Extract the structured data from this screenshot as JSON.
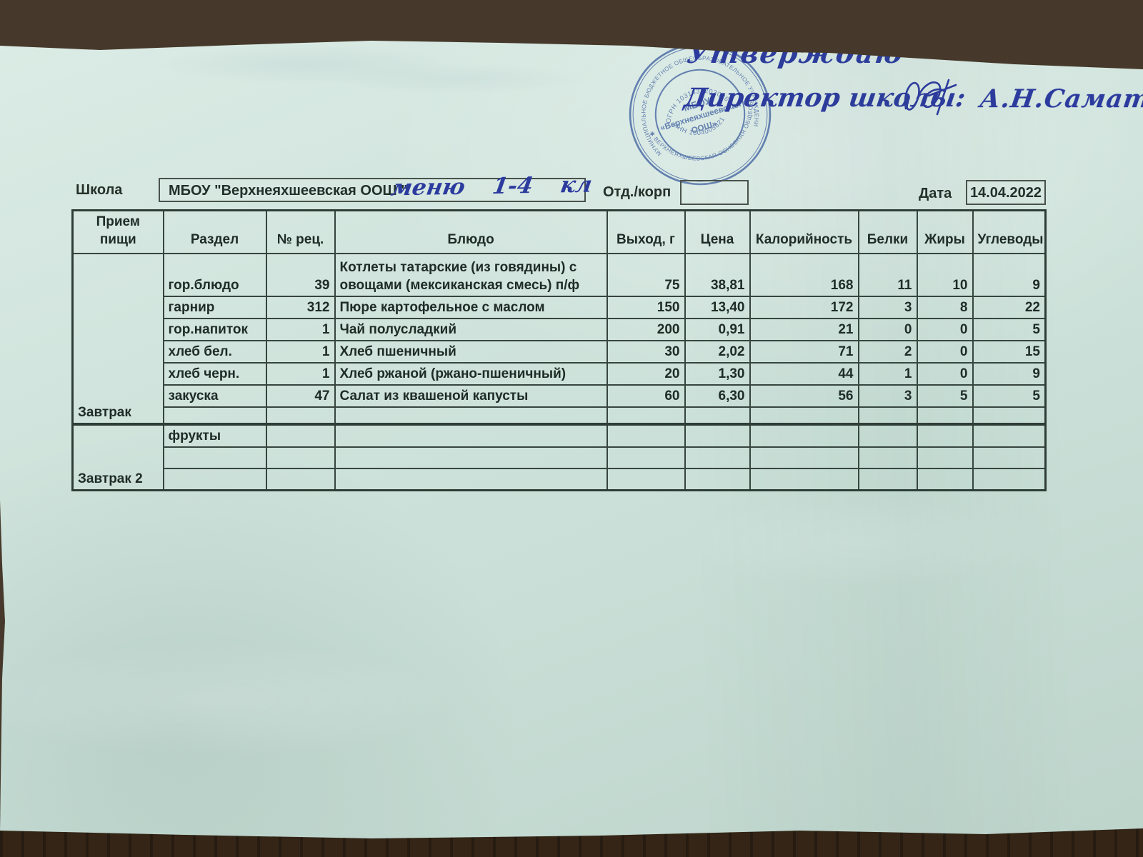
{
  "approval": {
    "approve_word": "Утверждаю",
    "role_line": "Директор школы:",
    "signatory": "А.Н.Саматов"
  },
  "stamp": {
    "outer_ring_top": "МУНИЦИПАЛЬНОЕ БЮДЖЕТНОЕ ОБЩЕОБРАЗОВАТЕЛЬНОЕ УЧРЕЖДЕНИЕ ✱ АКТАНЫШСКОГО МУНИЦИПАЛЬНОГО РАЙОНА",
    "outer_ring_bottom": "✱ ВЕРХНЕЯХШЕЕВСКАЯ ОСНОВНАЯ ОБЩЕОБРАЗОВАТЕЛЬНАЯ ШКОЛА ✱",
    "ogrn": "ОГРН 1031635202026",
    "inn": "ИНН 1604005821",
    "center_line1": "МБОУ",
    "center_line2": "«Верхнеяхшеевская",
    "center_line3": "ООШ»"
  },
  "form": {
    "school_label": "Школа",
    "school_value": "МБОУ \"Верхнеяхшеевская ООШ \"",
    "handwritten_note": "меню 1-4 кл",
    "dept_label": "Отд./корп",
    "dept_value": "",
    "date_label": "Дата",
    "date_value": "14.04.2022"
  },
  "table": {
    "headers": [
      "Прием пищи",
      "Раздел",
      "№ рец.",
      "Блюдо",
      "Выход, г",
      "Цена",
      "Калорийность",
      "Белки",
      "Жиры",
      "Углеводы"
    ],
    "sections": [
      {
        "meal": "Завтрак",
        "rows": [
          {
            "cells": [
              "гор.блюдо",
              "39",
              "Котлеты татарские (из говядины) с овощами (мексиканская смесь) п/ф",
              "75",
              "38,81",
              "168",
              "11",
              "10",
              "9"
            ]
          },
          {
            "cells": [
              "гарнир",
              "312",
              "Пюре картофельное с маслом",
              "150",
              "13,40",
              "172",
              "3",
              "8",
              "22"
            ]
          },
          {
            "cells": [
              "гор.напиток",
              "1",
              "Чай полусладкий",
              "200",
              "0,91",
              "21",
              "0",
              "0",
              "5"
            ]
          },
          {
            "cells": [
              "хлеб бел.",
              "1",
              "Хлеб пшеничный",
              "30",
              "2,02",
              "71",
              "2",
              "0",
              "15"
            ]
          },
          {
            "cells": [
              "хлеб черн.",
              "1",
              "Хлеб ржаной (ржано-пшеничный)",
              "20",
              "1,30",
              "44",
              "1",
              "0",
              "9"
            ]
          },
          {
            "cells": [
              "закуска",
              "47",
              "Салат из квашеной капусты",
              "60",
              "6,30",
              "56",
              "3",
              "5",
              "5"
            ]
          },
          {
            "cells": [
              "",
              "",
              "",
              "",
              "",
              "",
              "",
              "",
              ""
            ]
          }
        ]
      },
      {
        "meal": "Завтрак 2",
        "rows": [
          {
            "cells": [
              "фрукты",
              "",
              "",
              "",
              "",
              "",
              "",
              "",
              ""
            ]
          },
          {
            "cells": [
              "",
              "",
              "",
              "",
              "",
              "",
              "",
              "",
              ""
            ]
          },
          {
            "cells": [
              "",
              "",
              "",
              "",
              "",
              "",
              "",
              "",
              ""
            ]
          }
        ]
      }
    ]
  },
  "colors": {
    "paper": "#cfe3dc",
    "wood": "#4a3d2f",
    "ink": "#2c3b9e",
    "stamp_ink": "#3d5fae",
    "table_line": "#36453e",
    "text": "#1e2b26"
  }
}
